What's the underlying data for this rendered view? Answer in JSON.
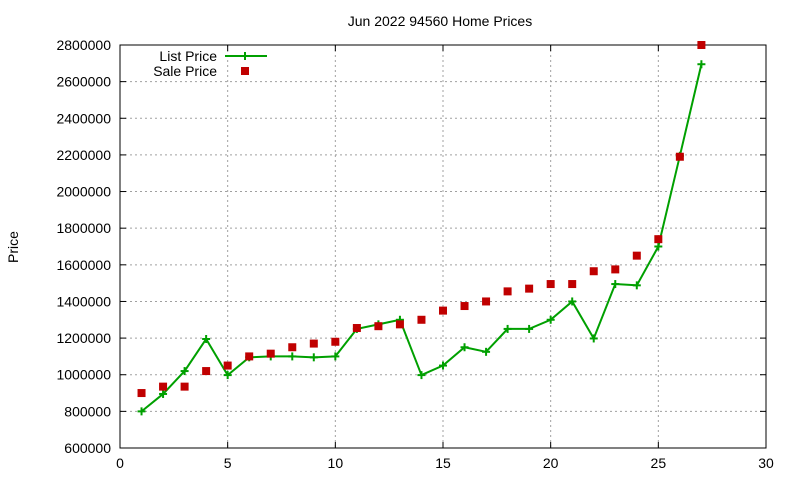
{
  "chart_data": {
    "type": "line",
    "title": "Jun 2022 94560 Home Prices",
    "xlabel": "",
    "ylabel": "Price",
    "xlim": [
      0,
      30
    ],
    "ylim": [
      600000,
      2800000
    ],
    "x_ticks": [
      "0",
      "5",
      "10",
      "15",
      "20",
      "25",
      "30"
    ],
    "y_ticks": [
      "600000",
      "800000",
      "1000000",
      "1200000",
      "1400000",
      "1600000",
      "1800000",
      "2000000",
      "2200000",
      "2400000",
      "2600000",
      "2800000"
    ],
    "grid": true,
    "legend_position": "top-left",
    "colors": {
      "list": "#00a000",
      "sale": "#c00000"
    },
    "series": [
      {
        "name": "List Price",
        "style": "line-with-plus-markers",
        "x": [
          1,
          2,
          3,
          4,
          5,
          6,
          7,
          8,
          9,
          10,
          11,
          12,
          13,
          14,
          15,
          16,
          17,
          18,
          19,
          20,
          21,
          22,
          23,
          24,
          25,
          26,
          27
        ],
        "values": [
          800000,
          895000,
          1020000,
          1195000,
          998000,
          1095000,
          1100000,
          1100000,
          1095000,
          1100000,
          1250000,
          1275000,
          1300000,
          998000,
          1050000,
          1150000,
          1125000,
          1250000,
          1250000,
          1300000,
          1400000,
          1198000,
          1495000,
          1488000,
          1700000,
          2195000,
          2695000
        ]
      },
      {
        "name": "Sale Price",
        "style": "square-markers",
        "x": [
          1,
          2,
          3,
          4,
          5,
          6,
          7,
          8,
          9,
          10,
          11,
          12,
          13,
          14,
          15,
          16,
          17,
          18,
          19,
          20,
          21,
          22,
          23,
          24,
          25,
          26,
          27
        ],
        "values": [
          900000,
          935000,
          935000,
          1020000,
          1050000,
          1100000,
          1115000,
          1150000,
          1170000,
          1180000,
          1255000,
          1265000,
          1275000,
          1300000,
          1350000,
          1375000,
          1400000,
          1455000,
          1470000,
          1495000,
          1495000,
          1565000,
          1575000,
          1650000,
          1740000,
          2190000,
          2800000
        ]
      }
    ]
  }
}
